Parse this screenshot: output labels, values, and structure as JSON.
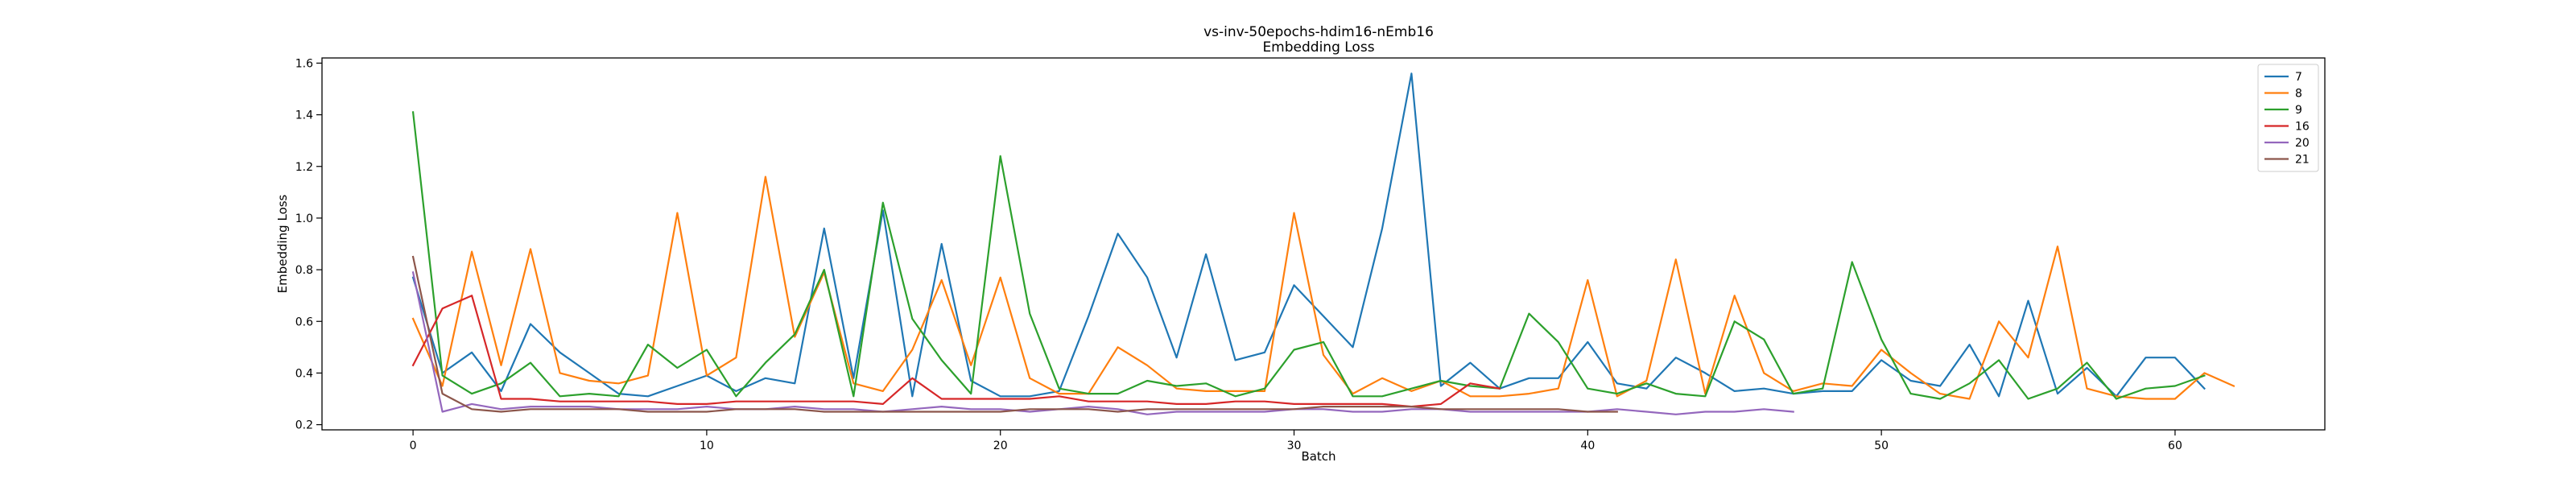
{
  "chart_data": {
    "type": "line",
    "title": "vs-inv-50epochs-hdim16-nEmb16",
    "subtitle": "Embedding Loss",
    "xlabel": "Batch",
    "ylabel": "Embedding Loss",
    "xlim": [
      -3.1,
      65.1
    ],
    "ylim": [
      0.18,
      1.62
    ],
    "xticks": [
      0,
      10,
      20,
      30,
      40,
      50,
      60
    ],
    "yticks": [
      0.2,
      0.4,
      0.6,
      0.8,
      1.0,
      1.2,
      1.4,
      1.6
    ],
    "ytick_labels": [
      "0.2",
      "0.4",
      "0.6",
      "0.8",
      "1.0",
      "1.2",
      "1.4",
      "1.6"
    ],
    "grid": false,
    "legend_position": "top-right",
    "series": [
      {
        "name": "7",
        "color": "#1f77b4",
        "values": [
          0.77,
          0.4,
          0.48,
          0.33,
          0.59,
          0.48,
          0.4,
          0.32,
          0.31,
          0.35,
          0.39,
          0.33,
          0.38,
          0.36,
          0.96,
          0.38,
          1.03,
          0.31,
          0.9,
          0.37,
          0.31,
          0.31,
          0.33,
          0.62,
          0.94,
          0.77,
          0.46,
          0.86,
          0.45,
          0.48,
          0.74,
          0.62,
          0.5,
          0.96,
          1.56,
          0.35,
          0.44,
          0.34,
          0.38,
          0.38,
          0.52,
          0.36,
          0.34,
          0.46,
          0.4,
          0.33,
          0.34,
          0.32,
          0.33,
          0.33,
          0.45,
          0.37,
          0.35,
          0.51,
          0.31,
          0.68,
          0.32,
          0.42,
          0.31,
          0.46,
          0.46,
          0.34
        ]
      },
      {
        "name": "8",
        "color": "#ff7f0e",
        "values": [
          0.61,
          0.35,
          0.87,
          0.43,
          0.88,
          0.4,
          0.37,
          0.36,
          0.39,
          1.02,
          0.39,
          0.46,
          1.16,
          0.54,
          0.79,
          0.36,
          0.33,
          0.49,
          0.76,
          0.43,
          0.77,
          0.38,
          0.32,
          0.32,
          0.5,
          0.43,
          0.34,
          0.33,
          0.33,
          0.33,
          1.02,
          0.47,
          0.32,
          0.38,
          0.33,
          0.37,
          0.31,
          0.31,
          0.32,
          0.34,
          0.76,
          0.31,
          0.37,
          0.84,
          0.32,
          0.7,
          0.4,
          0.33,
          0.36,
          0.35,
          0.49,
          0.4,
          0.32,
          0.3,
          0.6,
          0.46,
          0.89,
          0.34,
          0.31,
          0.3,
          0.3,
          0.4,
          0.35
        ]
      },
      {
        "name": "9",
        "color": "#2ca02c",
        "values": [
          1.41,
          0.39,
          0.32,
          0.36,
          0.44,
          0.31,
          0.32,
          0.31,
          0.51,
          0.42,
          0.49,
          0.31,
          0.44,
          0.55,
          0.8,
          0.31,
          1.06,
          0.61,
          0.45,
          0.32,
          1.24,
          0.63,
          0.34,
          0.32,
          0.32,
          0.37,
          0.35,
          0.36,
          0.31,
          0.34,
          0.49,
          0.52,
          0.31,
          0.31,
          0.34,
          0.37,
          0.35,
          0.34,
          0.63,
          0.52,
          0.34,
          0.32,
          0.36,
          0.32,
          0.31,
          0.6,
          0.53,
          0.32,
          0.34,
          0.83,
          0.53,
          0.32,
          0.3,
          0.36,
          0.45,
          0.3,
          0.34,
          0.44,
          0.3,
          0.34,
          0.35,
          0.39
        ]
      },
      {
        "name": "16",
        "color": "#d62728",
        "values": [
          0.43,
          0.65,
          0.7,
          0.3,
          0.3,
          0.29,
          0.29,
          0.29,
          0.29,
          0.28,
          0.28,
          0.29,
          0.29,
          0.29,
          0.29,
          0.29,
          0.28,
          0.38,
          0.3,
          0.3,
          0.3,
          0.3,
          0.31,
          0.29,
          0.29,
          0.29,
          0.28,
          0.28,
          0.29,
          0.29,
          0.28,
          0.28,
          0.28,
          0.28,
          0.27,
          0.28,
          0.36,
          0.34
        ]
      },
      {
        "name": "20",
        "color": "#9467bd",
        "values": [
          0.79,
          0.25,
          0.28,
          0.26,
          0.27,
          0.27,
          0.27,
          0.26,
          0.26,
          0.26,
          0.27,
          0.26,
          0.26,
          0.27,
          0.26,
          0.26,
          0.25,
          0.26,
          0.27,
          0.26,
          0.26,
          0.25,
          0.26,
          0.27,
          0.26,
          0.24,
          0.25,
          0.25,
          0.25,
          0.25,
          0.26,
          0.26,
          0.25,
          0.25,
          0.26,
          0.26,
          0.25,
          0.25,
          0.25,
          0.25,
          0.25,
          0.26,
          0.25,
          0.24,
          0.25,
          0.25,
          0.26,
          0.25
        ]
      },
      {
        "name": "21",
        "color": "#8c564b",
        "values": [
          0.85,
          0.32,
          0.26,
          0.25,
          0.26,
          0.26,
          0.26,
          0.26,
          0.25,
          0.25,
          0.25,
          0.26,
          0.26,
          0.26,
          0.25,
          0.25,
          0.25,
          0.25,
          0.25,
          0.25,
          0.25,
          0.26,
          0.26,
          0.26,
          0.25,
          0.26,
          0.26,
          0.26,
          0.26,
          0.26,
          0.26,
          0.27,
          0.27,
          0.27,
          0.27,
          0.26,
          0.26,
          0.26,
          0.26,
          0.26,
          0.25,
          0.25
        ]
      }
    ]
  }
}
